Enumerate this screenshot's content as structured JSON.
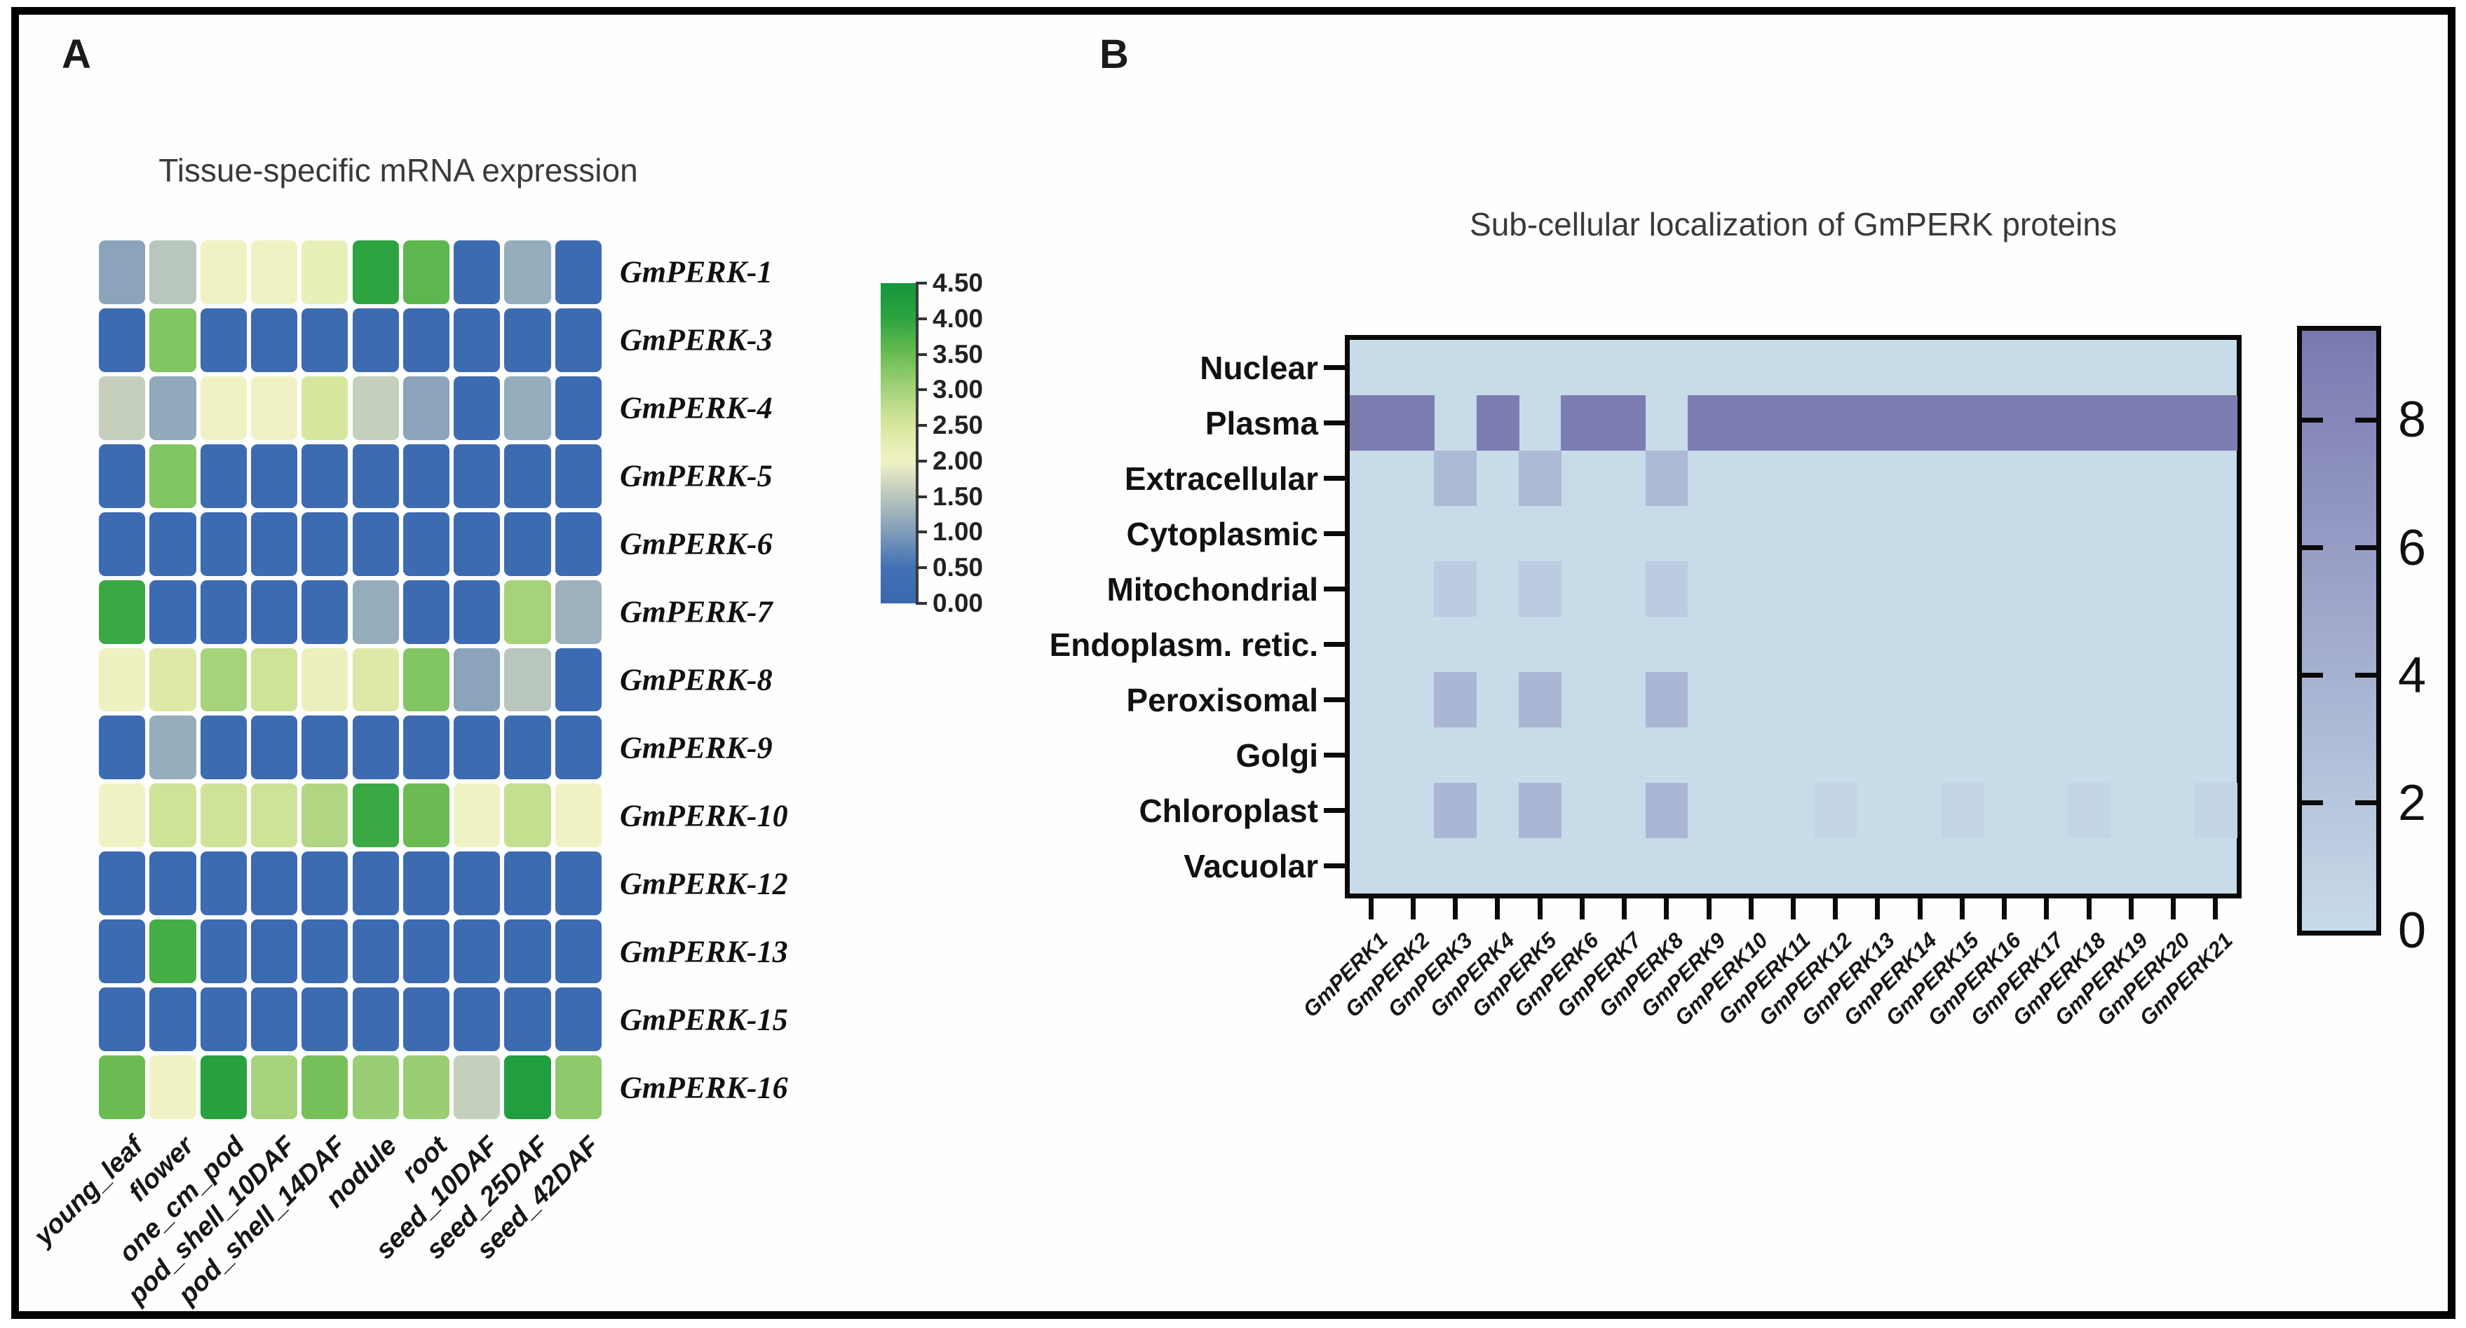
{
  "figure": {
    "panel_a_letter": "A",
    "panel_b_letter": "B"
  },
  "chart_data": [
    {
      "type": "heatmap",
      "panel": "A",
      "title": "Tissue-specific mRNA expression",
      "rows": [
        "GmPERK-1",
        "GmPERK-3",
        "GmPERK-4",
        "GmPERK-5",
        "GmPERK-6",
        "GmPERK-7",
        "GmPERK-8",
        "GmPERK-9",
        "GmPERK-10",
        "GmPERK-12",
        "GmPERK-13",
        "GmPERK-15",
        "GmPERK-16"
      ],
      "columns": [
        "young_leaf",
        "flower",
        "one_cm_pod",
        "pod_shell_10DAF",
        "pod_shell_14DAF",
        "nodule",
        "root",
        "seed_10DAF",
        "seed_25DAF",
        "seed_42DAF"
      ],
      "values": [
        [
          1.1,
          1.5,
          2.0,
          2.0,
          2.15,
          4.0,
          3.6,
          0.2,
          1.2,
          0.2
        ],
        [
          0.2,
          3.3,
          0.2,
          0.2,
          0.2,
          0.2,
          0.2,
          0.2,
          0.2,
          0.2
        ],
        [
          1.6,
          1.15,
          2.0,
          2.0,
          2.5,
          1.6,
          1.1,
          0.2,
          1.2,
          0.2
        ],
        [
          0.2,
          3.3,
          0.2,
          0.2,
          0.2,
          0.2,
          0.2,
          0.2,
          0.2,
          0.2
        ],
        [
          0.2,
          0.2,
          0.2,
          0.2,
          0.2,
          0.2,
          0.2,
          0.2,
          0.2,
          0.2
        ],
        [
          3.9,
          0.2,
          0.2,
          0.2,
          0.2,
          1.2,
          0.2,
          0.2,
          3.0,
          1.25
        ],
        [
          2.05,
          2.4,
          3.0,
          2.6,
          2.1,
          2.4,
          3.3,
          1.1,
          1.5,
          0.2
        ],
        [
          0.2,
          1.2,
          0.2,
          0.2,
          0.2,
          0.2,
          0.2,
          0.2,
          0.2,
          0.2
        ],
        [
          2.0,
          2.6,
          2.6,
          2.6,
          2.9,
          3.9,
          3.5,
          2.0,
          2.7,
          2.0
        ],
        [
          0.2,
          0.2,
          0.2,
          0.2,
          0.2,
          0.2,
          0.2,
          0.2,
          0.2,
          0.2
        ],
        [
          0.2,
          3.8,
          0.2,
          0.2,
          0.2,
          0.2,
          0.2,
          0.2,
          0.2,
          0.2
        ],
        [
          0.2,
          0.2,
          0.2,
          0.2,
          0.2,
          0.2,
          0.2,
          0.2,
          0.2,
          0.2
        ],
        [
          3.5,
          2.0,
          4.1,
          3.0,
          3.4,
          3.1,
          3.1,
          1.6,
          4.25,
          3.2
        ]
      ],
      "colorbar": {
        "ticks": [
          "4.50",
          "4.00",
          "3.50",
          "3.00",
          "2.50",
          "2.00",
          "1.50",
          "1.00",
          "0.50",
          "0.00"
        ],
        "min": 0,
        "max": 4.5
      },
      "colormap_stops": [
        [
          0.0,
          "#3a68b0"
        ],
        [
          0.5,
          "#4170b4"
        ],
        [
          1.0,
          "#7f9cba"
        ],
        [
          1.5,
          "#b9c6bd"
        ],
        [
          2.0,
          "#f0f2c4"
        ],
        [
          2.5,
          "#d8e79e"
        ],
        [
          3.0,
          "#a6d27c"
        ],
        [
          3.5,
          "#6abc52"
        ],
        [
          4.0,
          "#2ea440"
        ],
        [
          4.5,
          "#13973d"
        ]
      ],
      "legend_position": "right",
      "grid": false
    },
    {
      "type": "heatmap",
      "panel": "B",
      "title": "Sub-cellular localization of GmPERK proteins",
      "rows": [
        "Nuclear",
        "Plasma",
        "Extracellular",
        "Cytoplasmic",
        "Mitochondrial",
        "Endoplasm. retic.",
        "Peroxisomal",
        "Golgi",
        "Chloroplast",
        "Vacuolar"
      ],
      "columns": [
        "GmPERK1",
        "GmPERK2",
        "GmPERK3",
        "GmPERK4",
        "GmPERK5",
        "GmPERK6",
        "GmPERK7",
        "GmPERK8",
        "GmPERK9",
        "GmPERK10",
        "GmPERK11",
        "GmPERK12",
        "GmPERK13",
        "GmPERK14",
        "GmPERK15",
        "GmPERK16",
        "GmPERK17",
        "GmPERK18",
        "GmPERK19",
        "GmPERK20",
        "GmPERK21"
      ],
      "values": [
        [
          0,
          0,
          0,
          0,
          0,
          0,
          0,
          0,
          0,
          0,
          0,
          0,
          0,
          0,
          0,
          0,
          0,
          0,
          0,
          0,
          0
        ],
        [
          9,
          9,
          0,
          9,
          0,
          9,
          9,
          0,
          9,
          9,
          9,
          9,
          9,
          9,
          9,
          9,
          9,
          9,
          9,
          9,
          9
        ],
        [
          0,
          0,
          3.2,
          0,
          3.2,
          0,
          0,
          3.2,
          0,
          0,
          0,
          0,
          0,
          0,
          0,
          0,
          0,
          0,
          0,
          0,
          0
        ],
        [
          0,
          0,
          0,
          0,
          0,
          0,
          0,
          0,
          0,
          0,
          0,
          0,
          0,
          0,
          0,
          0,
          0,
          0,
          0,
          0,
          0
        ],
        [
          0,
          0,
          1.4,
          0,
          1.4,
          0,
          0,
          1.4,
          0,
          0,
          0,
          0,
          0,
          0,
          0,
          0,
          0,
          0,
          0,
          0,
          0
        ],
        [
          0,
          0,
          0,
          0,
          0,
          0,
          0,
          0,
          0,
          0,
          0,
          0,
          0,
          0,
          0,
          0,
          0,
          0,
          0,
          0,
          0
        ],
        [
          0,
          0,
          3.5,
          0,
          3.5,
          0,
          0,
          3.5,
          0,
          0,
          0,
          0,
          0,
          0,
          0,
          0,
          0,
          0,
          0,
          0,
          0
        ],
        [
          0,
          0,
          0,
          0,
          0,
          0,
          0,
          0,
          0,
          0,
          0,
          0,
          0,
          0,
          0,
          0,
          0,
          0,
          0,
          0,
          0
        ],
        [
          0,
          0,
          3.5,
          0,
          3.5,
          0,
          0,
          3.5,
          0,
          0,
          0,
          0.6,
          0,
          0,
          0.6,
          0,
          0,
          0.6,
          0,
          0,
          0.6
        ],
        [
          0,
          0,
          0,
          0,
          0,
          0,
          0,
          0,
          0,
          0,
          0,
          0,
          0,
          0,
          0,
          0,
          0,
          0,
          0,
          0,
          0
        ]
      ],
      "colorbar": {
        "ticks": [
          "8",
          "6",
          "4",
          "2",
          "0"
        ],
        "min": 0,
        "max": 9.4
      },
      "colors": {
        "low": "#c8dbe9",
        "high": "#7d7db2"
      },
      "legend_position": "right",
      "grid": false
    }
  ]
}
